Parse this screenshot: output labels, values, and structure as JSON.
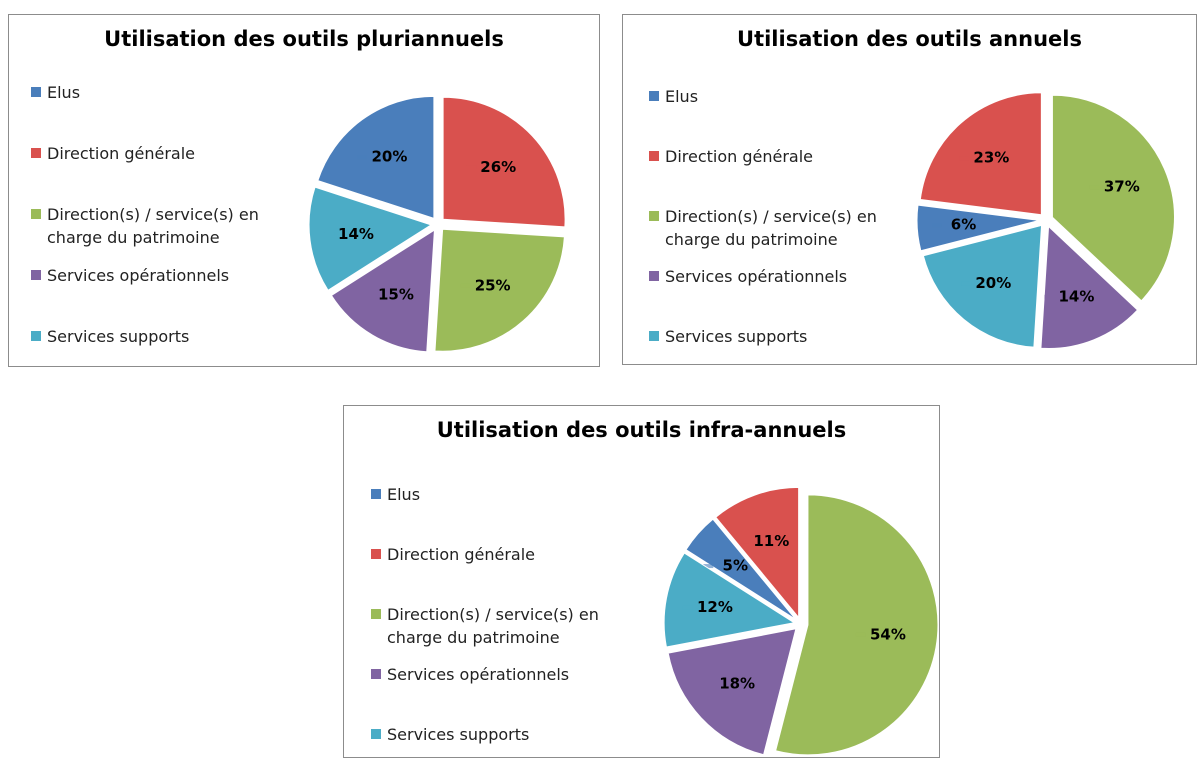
{
  "chart_data": [
    {
      "type": "pie",
      "title": "Utilisation des outils pluriannuels",
      "categories": [
        "Elus",
        "Direction générale",
        "Direction(s) / service(s) en charge du patrimoine",
        "Services opérationnels",
        "Services supports"
      ],
      "values": [
        20,
        26,
        25,
        15,
        14
      ],
      "value_labels": [
        "20%",
        "26%",
        "25%",
        "15%",
        "14%"
      ],
      "colors": [
        "#4a7ebb",
        "#d9514e",
        "#9bbb59",
        "#8064a2",
        "#4bacc6"
      ]
    },
    {
      "type": "pie",
      "title": "Utilisation des outils annuels",
      "categories": [
        "Elus",
        "Direction générale",
        "Direction(s) / service(s) en charge du patrimoine",
        "Services opérationnels",
        "Services supports"
      ],
      "values": [
        6,
        23,
        37,
        14,
        20
      ],
      "value_labels": [
        "6%",
        "23%",
        "37%",
        "14%",
        "20%"
      ],
      "colors": [
        "#4a7ebb",
        "#d9514e",
        "#9bbb59",
        "#8064a2",
        "#4bacc6"
      ]
    },
    {
      "type": "pie",
      "title": "Utilisation des outils infra-annuels",
      "categories": [
        "Elus",
        "Direction générale",
        "Direction(s) / service(s) en charge du patrimoine",
        "Services opérationnels",
        "Services supports"
      ],
      "values": [
        5,
        11,
        54,
        18,
        12
      ],
      "value_labels": [
        "5%",
        "11%",
        "54%",
        "18%",
        "12%"
      ],
      "colors": [
        "#4a7ebb",
        "#d9514e",
        "#9bbb59",
        "#8064a2",
        "#4bacc6"
      ]
    }
  ]
}
